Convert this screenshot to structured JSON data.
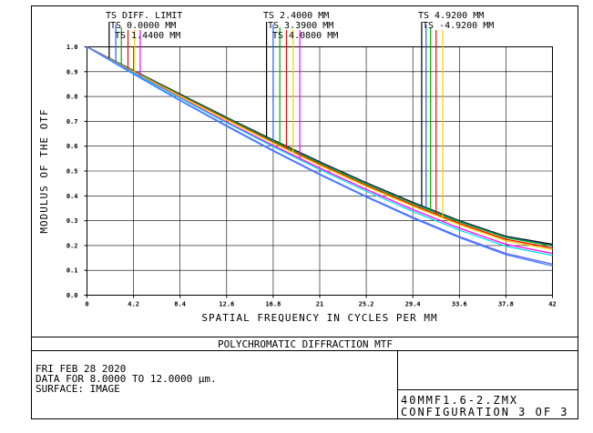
{
  "chart_data": {
    "type": "line",
    "title": "POLYCHROMATIC DIFFRACTION MTF",
    "xlabel": "SPATIAL FREQUENCY IN CYCLES PER MM",
    "ylabel": "MODULUS OF THE OTF",
    "xlim": [
      0,
      42
    ],
    "ylim": [
      0,
      1.0
    ],
    "xticks": [
      "0",
      "4.2",
      "8.4",
      "12.6",
      "16.8",
      "21",
      "25.2",
      "29.4",
      "33.6",
      "37.8",
      "42"
    ],
    "yticks": [
      "0.0",
      "0.1",
      "0.2",
      "0.3",
      "0.4",
      "0.5",
      "0.6",
      "0.7",
      "0.8",
      "0.9",
      "1.0"
    ],
    "grid": true,
    "legend_groups": [
      {
        "labels": [
          "TS DIFF. LIMIT",
          "TS 0.0000 MM",
          "TS 1.4400 MM"
        ],
        "mark_x": [
          2.0,
          2.6,
          3.1,
          3.7,
          4.3,
          4.8
        ]
      },
      {
        "labels": [
          "TS 2.4000 MM",
          "TS 3.3900 MM",
          "TS 4.0800 MM"
        ],
        "mark_x": [
          16.2,
          16.8,
          17.4,
          18.0,
          18.6,
          19.2
        ]
      },
      {
        "labels": [
          "TS 4.9200 MM",
          "TS -4.9200 MM"
        ],
        "mark_x": [
          30.2,
          30.6,
          31.0,
          31.5,
          32.1
        ]
      }
    ],
    "series": [
      {
        "color": "#000000",
        "x": [
          0,
          4.2,
          8.4,
          12.6,
          16.8,
          21,
          25.2,
          29.4,
          33.6,
          37.8,
          42
        ],
        "y": [
          1.0,
          0.905,
          0.81,
          0.716,
          0.625,
          0.537,
          0.453,
          0.374,
          0.3,
          0.237,
          0.205
        ]
      },
      {
        "color": "#2060ff",
        "x": [
          0,
          4.2,
          8.4,
          12.6,
          16.8,
          21,
          25.2,
          29.4,
          33.6,
          37.8,
          42
        ],
        "y": [
          1.0,
          0.904,
          0.808,
          0.714,
          0.622,
          0.534,
          0.45,
          0.371,
          0.297,
          0.234,
          0.2
        ]
      },
      {
        "color": "#00b000",
        "x": [
          0,
          4.2,
          8.4,
          12.6,
          16.8,
          21,
          25.2,
          29.4,
          33.6,
          37.8,
          42
        ],
        "y": [
          1.0,
          0.903,
          0.807,
          0.713,
          0.621,
          0.532,
          0.448,
          0.369,
          0.295,
          0.232,
          0.198
        ]
      },
      {
        "color": "#ff0000",
        "x": [
          0,
          4.2,
          8.4,
          12.6,
          16.8,
          21,
          25.2,
          29.4,
          33.6,
          37.8,
          42
        ],
        "y": [
          1.0,
          0.901,
          0.804,
          0.709,
          0.616,
          0.527,
          0.442,
          0.363,
          0.289,
          0.225,
          0.19
        ]
      },
      {
        "color": "#f0d000",
        "x": [
          0,
          4.2,
          8.4,
          12.6,
          16.8,
          21,
          25.2,
          29.4,
          33.6,
          37.8,
          42
        ],
        "y": [
          1.0,
          0.9,
          0.802,
          0.706,
          0.613,
          0.523,
          0.438,
          0.358,
          0.284,
          0.219,
          0.184
        ]
      },
      {
        "color": "#ff00ff",
        "x": [
          0,
          4.2,
          8.4,
          12.6,
          16.8,
          21,
          25.2,
          29.4,
          33.6,
          37.8,
          42
        ],
        "y": [
          1.0,
          0.897,
          0.796,
          0.698,
          0.603,
          0.512,
          0.426,
          0.345,
          0.27,
          0.205,
          0.168
        ]
      },
      {
        "color": "#00e0e0",
        "x": [
          0,
          4.2,
          8.4,
          12.6,
          16.8,
          21,
          25.2,
          29.4,
          33.6,
          37.8,
          42
        ],
        "y": [
          1.0,
          0.895,
          0.793,
          0.694,
          0.598,
          0.506,
          0.419,
          0.337,
          0.262,
          0.197,
          0.16
        ]
      },
      {
        "color": "#6060ff",
        "x": [
          0,
          4.2,
          8.4,
          12.6,
          16.8,
          21,
          25.2,
          29.4,
          33.6,
          37.8,
          42
        ],
        "y": [
          1.0,
          0.891,
          0.785,
          0.683,
          0.583,
          0.488,
          0.398,
          0.314,
          0.236,
          0.168,
          0.125
        ]
      },
      {
        "color": "#4080ff",
        "x": [
          0,
          4.2,
          8.4,
          12.6,
          16.8,
          21,
          25.2,
          29.4,
          33.6,
          37.8,
          42
        ],
        "y": [
          1.0,
          0.89,
          0.783,
          0.68,
          0.58,
          0.485,
          0.395,
          0.31,
          0.232,
          0.163,
          0.118
        ]
      }
    ]
  },
  "footer": {
    "title": "POLYCHROMATIC DIFFRACTION MTF",
    "date": "FRI FEB 28 2020",
    "data_range": "DATA FOR 8.0000 TO 12.0000 µm.",
    "surface": "SURFACE: IMAGE",
    "file": "40MMF1.6-2.ZMX",
    "configuration": "CONFIGURATION 3 OF 3"
  }
}
